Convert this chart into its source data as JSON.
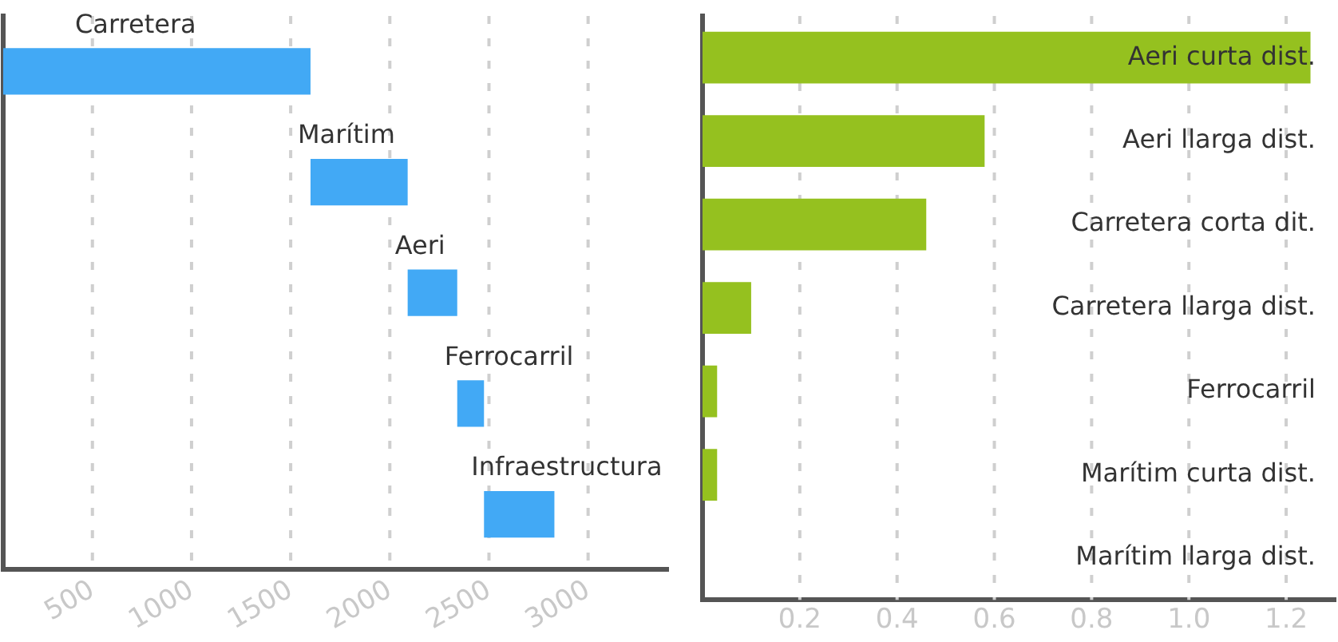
{
  "chart_data": [
    {
      "type": "bar",
      "orientation": "horizontal",
      "categories": [
        "Carretera",
        "Marítim",
        "Aeri",
        "Ferrocarril",
        "Infraestructura"
      ],
      "base": [
        50,
        1600,
        2090,
        2340,
        2475
      ],
      "values": [
        1550,
        490,
        250,
        135,
        355
      ],
      "color": "#42a9f5",
      "xlim": [
        50,
        3400
      ],
      "xticks": [
        500,
        1000,
        1500,
        2000,
        2500,
        3000
      ],
      "grid": "x",
      "tick_labels": "x"
    },
    {
      "type": "bar",
      "orientation": "horizontal",
      "categories": [
        "Aeri curta dist.",
        "Aeri llarga dist.",
        "Carretera corta dit.",
        "Carretera llarga dist.",
        "Ferrocarril",
        "Marítim curta dist.",
        "Marítim llarga dist."
      ],
      "values": [
        1.25,
        0.58,
        0.46,
        0.1,
        0.03,
        0.03,
        0
      ],
      "color": "#95c11f",
      "xlim": [
        0,
        1.3
      ],
      "xticks": [
        0.2,
        0.4,
        0.6,
        0.8,
        {
          "value": 1,
          "label": "1.0"
        },
        1.2
      ],
      "grid": "x",
      "tick_labels": "x"
    }
  ]
}
